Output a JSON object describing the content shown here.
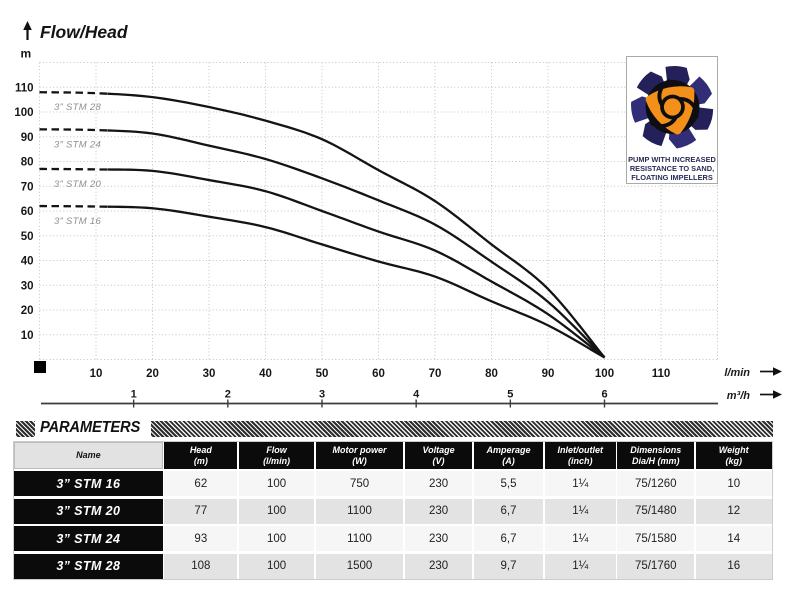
{
  "chart_data": {
    "type": "line",
    "title": "Flow/Head",
    "ylabel": "m",
    "xlabel_primary": "l/min",
    "xlabel_secondary": "m³/h",
    "xlim_lmin": [
      0,
      120
    ],
    "ylim_m": [
      0,
      120
    ],
    "y_ticks": [
      10,
      20,
      30,
      40,
      50,
      60,
      70,
      80,
      90,
      100,
      110
    ],
    "x_ticks_lmin": [
      10,
      20,
      30,
      40,
      50,
      60,
      70,
      80,
      90,
      100,
      110
    ],
    "x_ticks_m3h": [
      1,
      2,
      3,
      4,
      5,
      6
    ],
    "grid": "dotted",
    "legend_position": "labels-at-curve-start",
    "dashed_until_lmin": 12,
    "series": [
      {
        "name": "3” STM 28",
        "points": [
          [
            0,
            108
          ],
          [
            10,
            107.6
          ],
          [
            20,
            106
          ],
          [
            30,
            102
          ],
          [
            40,
            96.5
          ],
          [
            50,
            89
          ],
          [
            60,
            76.5
          ],
          [
            70,
            64
          ],
          [
            80,
            46.5
          ],
          [
            90,
            28.5
          ],
          [
            100,
            0.8
          ]
        ]
      },
      {
        "name": "3” STM 24",
        "points": [
          [
            0,
            93
          ],
          [
            10,
            92.7
          ],
          [
            20,
            91.3
          ],
          [
            30,
            86.4
          ],
          [
            40,
            81
          ],
          [
            50,
            73.2
          ],
          [
            60,
            64.3
          ],
          [
            70,
            54.5
          ],
          [
            80,
            39.5
          ],
          [
            90,
            23.3
          ],
          [
            100,
            0.8
          ]
        ]
      },
      {
        "name": "3” STM 20",
        "points": [
          [
            0,
            77
          ],
          [
            10,
            76.8
          ],
          [
            20,
            76.2
          ],
          [
            30,
            72.5
          ],
          [
            40,
            68
          ],
          [
            50,
            60
          ],
          [
            60,
            51.7
          ],
          [
            70,
            44
          ],
          [
            80,
            31.5
          ],
          [
            90,
            18.3
          ],
          [
            100,
            0.8
          ]
        ]
      },
      {
        "name": "3” STM 16",
        "points": [
          [
            0,
            62
          ],
          [
            10,
            61.8
          ],
          [
            20,
            61.1
          ],
          [
            30,
            57.7
          ],
          [
            40,
            53.5
          ],
          [
            50,
            46.5
          ],
          [
            60,
            39.6
          ],
          [
            70,
            33.5
          ],
          [
            80,
            23.5
          ],
          [
            90,
            13.8
          ],
          [
            100,
            0.8
          ]
        ]
      }
    ]
  },
  "logo": {
    "caption_lines": [
      "PUMP WITH INCREASED",
      "RESISTANCE TO SAND,",
      "FLOATING IMPELLERS"
    ],
    "colors": {
      "navy": "#312e77",
      "navy_dark": "#23205a",
      "black": "#0d0d12",
      "orange": "#f39019"
    }
  },
  "parameters": {
    "title": "PARAMETERS",
    "columns": [
      {
        "label": "Name",
        "unit": ""
      },
      {
        "label": "Head",
        "unit": "(m)"
      },
      {
        "label": "Flow",
        "unit": "(l/min)"
      },
      {
        "label": "Motor power",
        "unit": "(W)"
      },
      {
        "label": "Voltage",
        "unit": "(V)"
      },
      {
        "label": "Amperage",
        "unit": "(A)"
      },
      {
        "label": "Inlet/outlet",
        "unit": "(inch)"
      },
      {
        "label": "Dimensions",
        "unit": "Dia/H (mm)"
      },
      {
        "label": "Weight",
        "unit": "(kg)"
      }
    ],
    "rows": [
      {
        "name": "3” STM 16",
        "values": [
          "62",
          "100",
          "750",
          "230",
          "5,5",
          "1¼",
          "75/1260",
          "10"
        ]
      },
      {
        "name": "3” STM 20",
        "values": [
          "77",
          "100",
          "1100",
          "230",
          "6,7",
          "1¼",
          "75/1480",
          "12"
        ]
      },
      {
        "name": "3” STM 24",
        "values": [
          "93",
          "100",
          "1100",
          "230",
          "6,7",
          "1¼",
          "75/1580",
          "14"
        ]
      },
      {
        "name": "3” STM 28",
        "values": [
          "108",
          "100",
          "1500",
          "230",
          "9,7",
          "1¼",
          "75/1760",
          "16"
        ]
      }
    ]
  }
}
